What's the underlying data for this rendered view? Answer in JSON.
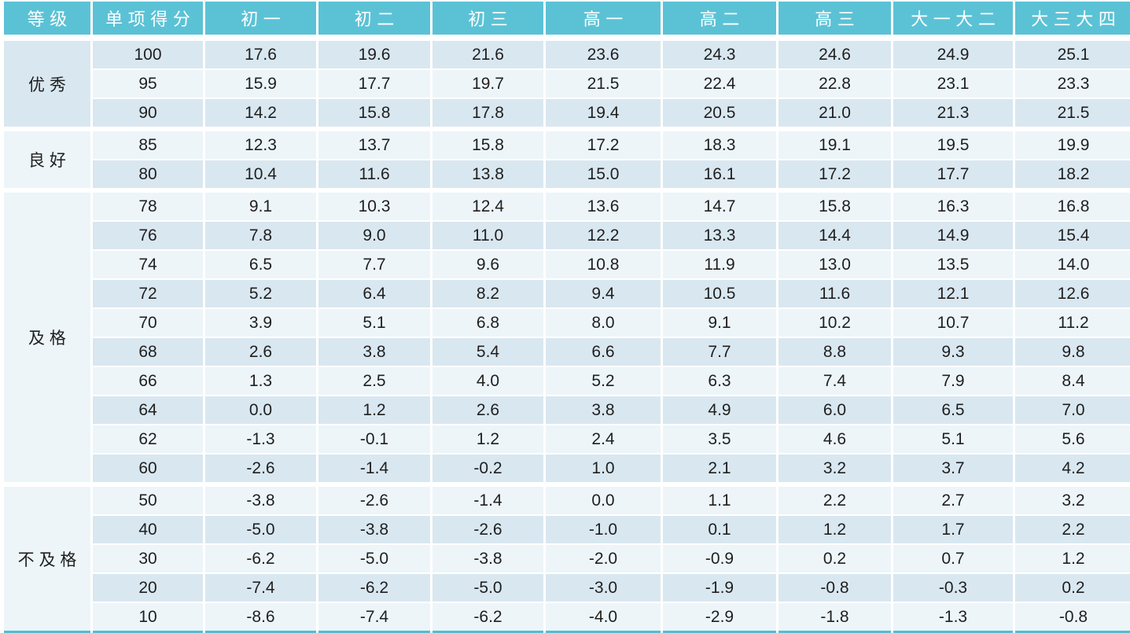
{
  "chart_data": {
    "type": "table",
    "title": "",
    "columns": [
      "等级",
      "单项得分",
      "初一",
      "初二",
      "初三",
      "高一",
      "高二",
      "高三",
      "大一大二",
      "大三大四"
    ],
    "groups": [
      {
        "label": "优秀",
        "rows": [
          [
            "100",
            "17.6",
            "19.6",
            "21.6",
            "23.6",
            "24.3",
            "24.6",
            "24.9",
            "25.1"
          ],
          [
            "95",
            "15.9",
            "17.7",
            "19.7",
            "21.5",
            "22.4",
            "22.8",
            "23.1",
            "23.3"
          ],
          [
            "90",
            "14.2",
            "15.8",
            "17.8",
            "19.4",
            "20.5",
            "21.0",
            "21.3",
            "21.5"
          ]
        ]
      },
      {
        "label": "良好",
        "rows": [
          [
            "85",
            "12.3",
            "13.7",
            "15.8",
            "17.2",
            "18.3",
            "19.1",
            "19.5",
            "19.9"
          ],
          [
            "80",
            "10.4",
            "11.6",
            "13.8",
            "15.0",
            "16.1",
            "17.2",
            "17.7",
            "18.2"
          ]
        ]
      },
      {
        "label": "及格",
        "rows": [
          [
            "78",
            "9.1",
            "10.3",
            "12.4",
            "13.6",
            "14.7",
            "15.8",
            "16.3",
            "16.8"
          ],
          [
            "76",
            "7.8",
            "9.0",
            "11.0",
            "12.2",
            "13.3",
            "14.4",
            "14.9",
            "15.4"
          ],
          [
            "74",
            "6.5",
            "7.7",
            "9.6",
            "10.8",
            "11.9",
            "13.0",
            "13.5",
            "14.0"
          ],
          [
            "72",
            "5.2",
            "6.4",
            "8.2",
            "9.4",
            "10.5",
            "11.6",
            "12.1",
            "12.6"
          ],
          [
            "70",
            "3.9",
            "5.1",
            "6.8",
            "8.0",
            "9.1",
            "10.2",
            "10.7",
            "11.2"
          ],
          [
            "68",
            "2.6",
            "3.8",
            "5.4",
            "6.6",
            "7.7",
            "8.8",
            "9.3",
            "9.8"
          ],
          [
            "66",
            "1.3",
            "2.5",
            "4.0",
            "5.2",
            "6.3",
            "7.4",
            "7.9",
            "8.4"
          ],
          [
            "64",
            "0.0",
            "1.2",
            "2.6",
            "3.8",
            "4.9",
            "6.0",
            "6.5",
            "7.0"
          ],
          [
            "62",
            "-1.3",
            "-0.1",
            "1.2",
            "2.4",
            "3.5",
            "4.6",
            "5.1",
            "5.6"
          ],
          [
            "60",
            "-2.6",
            "-1.4",
            "-0.2",
            "1.0",
            "2.1",
            "3.2",
            "3.7",
            "4.2"
          ]
        ]
      },
      {
        "label": "不及格",
        "rows": [
          [
            "50",
            "-3.8",
            "-2.6",
            "-1.4",
            "0.0",
            "1.1",
            "2.2",
            "2.7",
            "3.2"
          ],
          [
            "40",
            "-5.0",
            "-3.8",
            "-2.6",
            "-1.0",
            "0.1",
            "1.2",
            "1.7",
            "2.2"
          ],
          [
            "30",
            "-6.2",
            "-5.0",
            "-3.8",
            "-2.0",
            "-0.9",
            "0.2",
            "0.7",
            "1.2"
          ],
          [
            "20",
            "-7.4",
            "-6.2",
            "-5.0",
            "-3.0",
            "-1.9",
            "-0.8",
            "-0.3",
            "0.2"
          ],
          [
            "10",
            "-8.6",
            "-7.4",
            "-6.2",
            "-4.0",
            "-2.9",
            "-1.8",
            "-1.3",
            "-0.8"
          ]
        ]
      }
    ],
    "layout": {
      "banded_rows": true,
      "band_order_from_top": "dark,light,alternating",
      "grade_column_merged_per_group": true,
      "grid": "white-separators",
      "legend_position": "none"
    },
    "colors": {
      "header_background": "#5BC2D5",
      "header_text": "#FFFFFF",
      "band_dark": "#D9E7F0",
      "band_light": "#EDF5F9",
      "body_text": "#1F1F1F",
      "separator": "#FFFFFF",
      "bottom_edge": "#53BDD1"
    }
  }
}
